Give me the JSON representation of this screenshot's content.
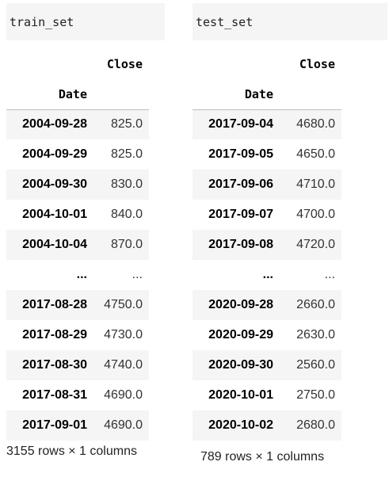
{
  "train": {
    "code": "train_set",
    "column_header": "Close",
    "index_name": "Date",
    "rows_top": [
      {
        "date": "2004-09-28",
        "close": "825.0"
      },
      {
        "date": "2004-09-29",
        "close": "825.0"
      },
      {
        "date": "2004-09-30",
        "close": "830.0"
      },
      {
        "date": "2004-10-01",
        "close": "840.0"
      },
      {
        "date": "2004-10-04",
        "close": "870.0"
      }
    ],
    "ellipsis_index": "...",
    "ellipsis_value": "...",
    "rows_bottom": [
      {
        "date": "2017-08-28",
        "close": "4750.0"
      },
      {
        "date": "2017-08-29",
        "close": "4730.0"
      },
      {
        "date": "2017-08-30",
        "close": "4740.0"
      },
      {
        "date": "2017-08-31",
        "close": "4690.0"
      },
      {
        "date": "2017-09-01",
        "close": "4690.0"
      }
    ],
    "footer": "3155 rows × 1 columns"
  },
  "test": {
    "code": "test_set",
    "column_header": "Close",
    "index_name": "Date",
    "rows_top": [
      {
        "date": "2017-09-04",
        "close": "4680.0"
      },
      {
        "date": "2017-09-05",
        "close": "4650.0"
      },
      {
        "date": "2017-09-06",
        "close": "4710.0"
      },
      {
        "date": "2017-09-07",
        "close": "4700.0"
      },
      {
        "date": "2017-09-08",
        "close": "4720.0"
      }
    ],
    "ellipsis_index": "...",
    "ellipsis_value": "...",
    "rows_bottom": [
      {
        "date": "2020-09-28",
        "close": "2660.0"
      },
      {
        "date": "2020-09-29",
        "close": "2630.0"
      },
      {
        "date": "2020-09-30",
        "close": "2560.0"
      },
      {
        "date": "2020-10-01",
        "close": "2750.0"
      },
      {
        "date": "2020-10-02",
        "close": "2680.0"
      }
    ],
    "footer": "789 rows × 1 columns"
  }
}
